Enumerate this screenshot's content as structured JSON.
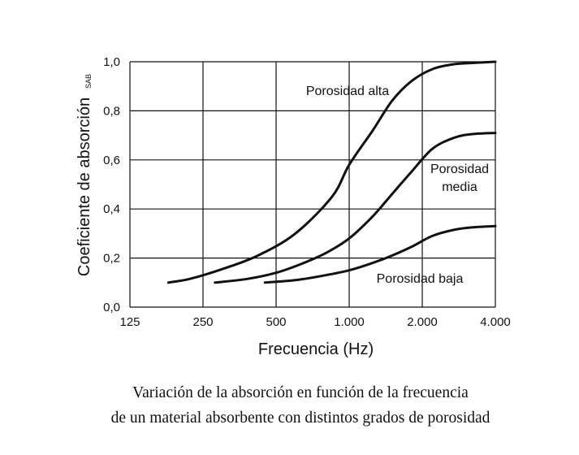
{
  "chart_data": {
    "type": "line",
    "title": "",
    "xlabel": "Frecuencia (Hz)",
    "ylabel": "Coeficiente de absorción",
    "ylabel_subscript": "SAB",
    "xscale": "log",
    "x_ticks": [
      {
        "value": 125,
        "label": "125"
      },
      {
        "value": 250,
        "label": "250"
      },
      {
        "value": 500,
        "label": "500"
      },
      {
        "value": 1000,
        "label": "1.000"
      },
      {
        "value": 2000,
        "label": "2.000"
      },
      {
        "value": 4000,
        "label": "4.000"
      }
    ],
    "y_ticks": [
      {
        "value": 0.0,
        "label": "0,0"
      },
      {
        "value": 0.2,
        "label": "0,2"
      },
      {
        "value": 0.4,
        "label": "0,4"
      },
      {
        "value": 0.6,
        "label": "0,6"
      },
      {
        "value": 0.8,
        "label": "0,8"
      },
      {
        "value": 1.0,
        "label": "1,0"
      }
    ],
    "xlim": [
      125,
      4000
    ],
    "ylim": [
      0,
      1
    ],
    "grid": true,
    "legend": "none",
    "series": [
      {
        "name": "Porosidad alta",
        "label_lines": [
          "Porosidad alta"
        ],
        "x": [
          180,
          220,
          300,
          420,
          600,
          850,
          1000,
          1250,
          1500,
          1800,
          2200,
          2700,
          3200,
          4000
        ],
        "y": [
          0.1,
          0.115,
          0.155,
          0.21,
          0.3,
          0.45,
          0.58,
          0.72,
          0.84,
          0.92,
          0.97,
          0.99,
          0.995,
          1.0
        ]
      },
      {
        "name": "Porosidad media",
        "label_lines": [
          "Porosidad",
          "media"
        ],
        "x": [
          280,
          380,
          500,
          650,
          800,
          1000,
          1250,
          1500,
          1800,
          2200,
          2700,
          3200,
          4000
        ],
        "y": [
          0.1,
          0.115,
          0.14,
          0.18,
          0.22,
          0.28,
          0.37,
          0.46,
          0.55,
          0.645,
          0.69,
          0.705,
          0.71
        ]
      },
      {
        "name": "Porosidad baja",
        "label_lines": [
          "Porosidad baja"
        ],
        "x": [
          450,
          600,
          800,
          1000,
          1250,
          1500,
          1800,
          2200,
          2700,
          3200,
          4000
        ],
        "y": [
          0.1,
          0.11,
          0.13,
          0.15,
          0.18,
          0.21,
          0.245,
          0.29,
          0.315,
          0.325,
          0.33
        ]
      }
    ],
    "caption_lines": [
      "Variación de la absorción en función de la frecuencia",
      "de un material absorbente con distintos grados de porosidad"
    ]
  }
}
